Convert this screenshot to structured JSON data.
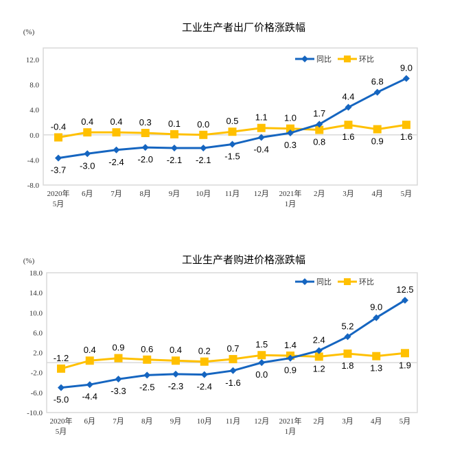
{
  "chart_data": [
    {
      "type": "line",
      "title": "工业生产者出厂价格涨跌幅",
      "ylabel": "(%)",
      "categories": [
        "2020年\n5月",
        "6月",
        "7月",
        "8月",
        "9月",
        "10月",
        "11月",
        "12月",
        "2021年\n1月",
        "2月",
        "3月",
        "4月",
        "5月"
      ],
      "ylim": [
        -8,
        12
      ],
      "yticks": [
        "12.0",
        "8.0",
        "4.0",
        "0.0",
        "-4.0",
        "-8.0"
      ],
      "ytick_values": [
        12,
        8,
        4,
        0,
        -4,
        -8
      ],
      "legend_position": "top-right",
      "series": [
        {
          "name": "同比",
          "color": "#1565C0",
          "marker": "diamond",
          "values": [
            -3.7,
            -3.0,
            -2.4,
            -2.0,
            -2.1,
            -2.1,
            -1.5,
            -0.4,
            0.3,
            1.7,
            4.4,
            6.8,
            9.0
          ],
          "labels": [
            "-3.7",
            "-3.0",
            "-2.4",
            "-2.0",
            "-2.1",
            "-2.1",
            "-1.5",
            "-0.4",
            "0.3",
            "1.7",
            "4.4",
            "6.8",
            "9.0"
          ]
        },
        {
          "name": "环比",
          "color": "#FFC000",
          "marker": "square",
          "values": [
            -0.4,
            0.4,
            0.4,
            0.3,
            0.1,
            0.0,
            0.5,
            1.1,
            1.0,
            0.8,
            1.6,
            0.9,
            1.6
          ],
          "labels": [
            "-0.4",
            "0.4",
            "0.4",
            "0.3",
            "0.1",
            "0.0",
            "0.5",
            "1.1",
            "1.0",
            "0.8",
            "1.6",
            "0.9",
            "1.6"
          ]
        }
      ]
    },
    {
      "type": "line",
      "title": "工业生产者购进价格涨跌幅",
      "ylabel": "(%)",
      "categories": [
        "2020年\n5月",
        "6月",
        "7月",
        "8月",
        "9月",
        "10月",
        "11月",
        "12月",
        "2021年\n1月",
        "2月",
        "3月",
        "4月",
        "5月"
      ],
      "ylim": [
        -10,
        18
      ],
      "yticks": [
        "18.0",
        "14.0",
        "10.0",
        "6.0",
        "2.0",
        "-2.0",
        "-6.0",
        "-10.0"
      ],
      "ytick_values": [
        18,
        14,
        10,
        6,
        2,
        -2,
        -6,
        -10
      ],
      "legend_position": "top-right",
      "series": [
        {
          "name": "同比",
          "color": "#1565C0",
          "marker": "diamond",
          "values": [
            -5.0,
            -4.4,
            -3.3,
            -2.5,
            -2.3,
            -2.4,
            -1.6,
            0.0,
            0.9,
            2.4,
            5.2,
            9.0,
            12.5
          ],
          "labels": [
            "-5.0",
            "-4.4",
            "-3.3",
            "-2.5",
            "-2.3",
            "-2.4",
            "-1.6",
            "0.0",
            "0.9",
            "2.4",
            "5.2",
            "9.0",
            "12.5"
          ]
        },
        {
          "name": "环比",
          "color": "#FFC000",
          "marker": "square",
          "values": [
            -1.2,
            0.4,
            0.9,
            0.6,
            0.4,
            0.2,
            0.7,
            1.5,
            1.4,
            1.2,
            1.8,
            1.3,
            1.9
          ],
          "labels": [
            "-1.2",
            "0.4",
            "0.9",
            "0.6",
            "0.4",
            "0.2",
            "0.7",
            "1.5",
            "1.4",
            "1.2",
            "1.8",
            "1.3",
            "1.9"
          ]
        }
      ]
    }
  ]
}
